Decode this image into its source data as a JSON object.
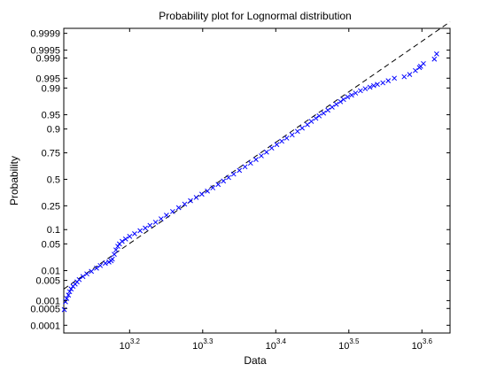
{
  "chart_data": {
    "type": "scatter",
    "title": "Probability plot for Lognormal distribution",
    "xlabel": "Data",
    "ylabel": "Probability",
    "x_scale": "log10",
    "y_scale": "normal-probability",
    "xlim": [
      1288,
      4350
    ],
    "x_ticks": [
      {
        "base": "10",
        "exp": "3.2",
        "value": 1584.9
      },
      {
        "base": "10",
        "exp": "3.3",
        "value": 1995.3
      },
      {
        "base": "10",
        "exp": "3.4",
        "value": 2511.9
      },
      {
        "base": "10",
        "exp": "3.5",
        "value": 3162.3
      },
      {
        "base": "10",
        "exp": "3.6",
        "value": 3981.1
      }
    ],
    "y_ticks": [
      "0.0001",
      "0.0005",
      "0.001",
      "0.005",
      "0.01",
      "0.05",
      "0.1",
      "0.25",
      "0.5",
      "0.75",
      "0.9",
      "0.95",
      "0.99",
      "0.995",
      "0.999",
      "0.9995",
      "0.9999"
    ],
    "marker": "x",
    "marker_color": "#0000ff",
    "reference_line": {
      "style": "dashed",
      "color": "#000000",
      "x": [
        1288,
        4350
      ],
      "p": [
        0.0026,
        0.99997
      ]
    },
    "series": [
      {
        "points": [
          [
            1290,
            0.00045
          ],
          [
            1295,
            0.0009
          ],
          [
            1300,
            0.0012
          ],
          [
            1307,
            0.0016
          ],
          [
            1312,
            0.0021
          ],
          [
            1318,
            0.0026
          ],
          [
            1326,
            0.0032
          ],
          [
            1335,
            0.0038
          ],
          [
            1343,
            0.0045
          ],
          [
            1352,
            0.0053
          ],
          [
            1368,
            0.0066
          ],
          [
            1385,
            0.008
          ],
          [
            1405,
            0.0095
          ],
          [
            1428,
            0.0118
          ],
          [
            1445,
            0.014
          ],
          [
            1468,
            0.0162
          ],
          [
            1485,
            0.0175
          ],
          [
            1495,
            0.019
          ],
          [
            1501,
            0.021
          ],
          [
            1510,
            0.028
          ],
          [
            1518,
            0.036
          ],
          [
            1527,
            0.044
          ],
          [
            1535,
            0.05
          ],
          [
            1548,
            0.057
          ],
          [
            1565,
            0.064
          ],
          [
            1585,
            0.073
          ],
          [
            1610,
            0.083
          ],
          [
            1638,
            0.095
          ],
          [
            1665,
            0.107
          ],
          [
            1690,
            0.12
          ],
          [
            1720,
            0.137
          ],
          [
            1750,
            0.157
          ],
          [
            1780,
            0.18
          ],
          [
            1815,
            0.206
          ],
          [
            1850,
            0.235
          ],
          [
            1885,
            0.264
          ],
          [
            1920,
            0.293
          ],
          [
            1955,
            0.322
          ],
          [
            1990,
            0.352
          ],
          [
            2025,
            0.382
          ],
          [
            2060,
            0.414
          ],
          [
            2095,
            0.448
          ],
          [
            2130,
            0.483
          ],
          [
            2165,
            0.518
          ],
          [
            2200,
            0.553
          ],
          [
            2240,
            0.59
          ],
          [
            2280,
            0.625
          ],
          [
            2320,
            0.66
          ],
          [
            2360,
            0.693
          ],
          [
            2400,
            0.725
          ],
          [
            2440,
            0.756
          ],
          [
            2480,
            0.787
          ],
          [
            2520,
            0.812
          ],
          [
            2560,
            0.834
          ],
          [
            2600,
            0.853
          ],
          [
            2645,
            0.871
          ],
          [
            2690,
            0.889
          ],
          [
            2730,
            0.904
          ],
          [
            2775,
            0.918
          ],
          [
            2810,
            0.93
          ],
          [
            2850,
            0.94
          ],
          [
            2880,
            0.947
          ],
          [
            2920,
            0.954
          ],
          [
            2960,
            0.961
          ],
          [
            3000,
            0.967
          ],
          [
            3040,
            0.972
          ],
          [
            3080,
            0.976
          ],
          [
            3110,
            0.979
          ],
          [
            3150,
            0.982
          ],
          [
            3190,
            0.984
          ],
          [
            3230,
            0.986
          ],
          [
            3280,
            0.988
          ],
          [
            3330,
            0.9895
          ],
          [
            3380,
            0.9905
          ],
          [
            3420,
            0.9915
          ],
          [
            3460,
            0.9922
          ],
          [
            3520,
            0.993
          ],
          [
            3580,
            0.994
          ],
          [
            3650,
            0.995
          ],
          [
            3765,
            0.9955
          ],
          [
            3830,
            0.9962
          ],
          [
            3900,
            0.9972
          ],
          [
            3950,
            0.9978
          ],
          [
            3965,
            0.998
          ],
          [
            4000,
            0.9984
          ],
          [
            4140,
            0.9989
          ],
          [
            4170,
            0.9993
          ]
        ]
      }
    ]
  }
}
